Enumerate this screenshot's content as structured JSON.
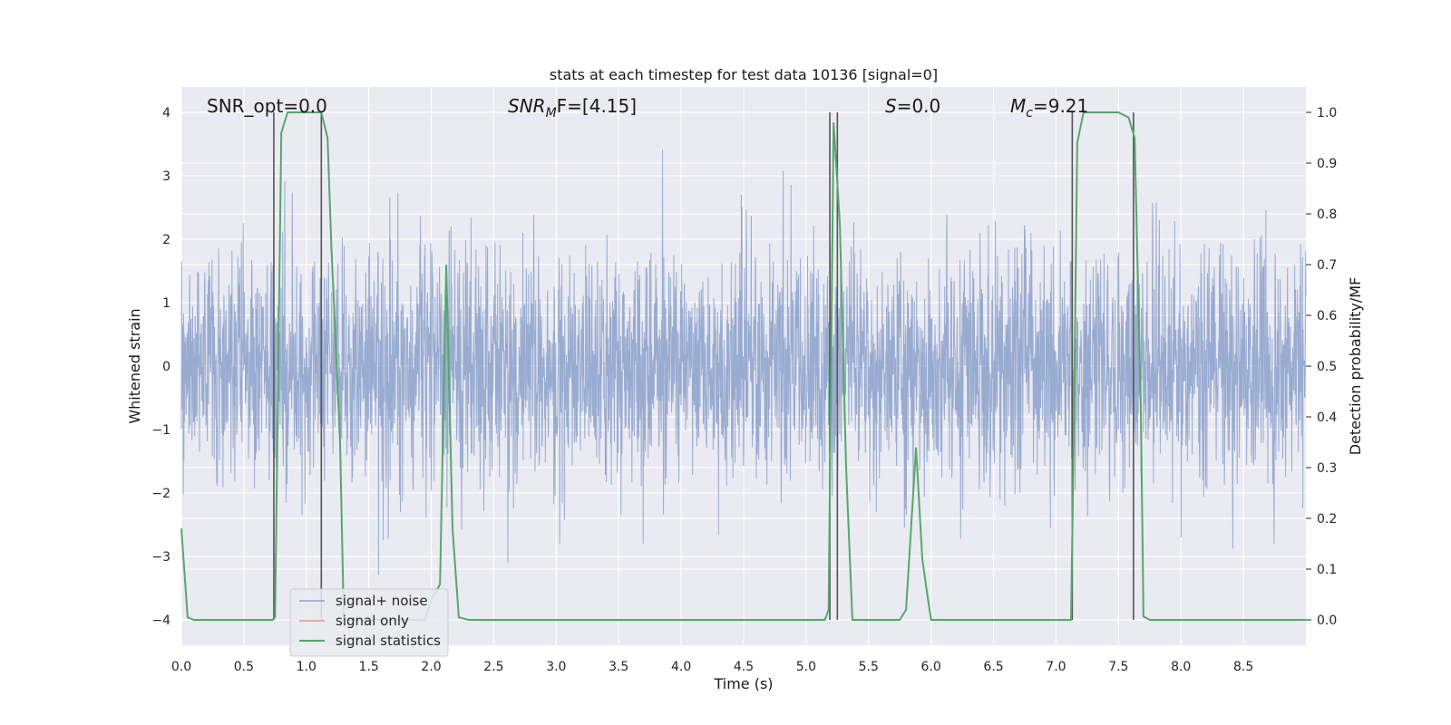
{
  "chart_data": {
    "type": "line",
    "title": "stats at each timestep for test data 10136 [signal=0]",
    "xlabel": "Time (s)",
    "ylabel": "Whitened strain",
    "y2label": "Detection probability/MF",
    "xlim": [
      0,
      9.0
    ],
    "ylim": [
      -4.4,
      4.4
    ],
    "y2lim": [
      -0.05,
      1.05
    ],
    "xticks": [
      "0.0",
      "0.5",
      "1.0",
      "1.5",
      "2.0",
      "2.5",
      "3.0",
      "3.5",
      "4.0",
      "4.5",
      "5.0",
      "5.5",
      "6.0",
      "6.5",
      "7.0",
      "7.5",
      "8.0",
      "8.5"
    ],
    "yticks": [
      "4",
      "3",
      "2",
      "1",
      "0",
      "−1",
      "−2",
      "−3",
      "−4"
    ],
    "y2ticks": [
      "1.0",
      "0.9",
      "0.8",
      "0.7",
      "0.6",
      "0.5",
      "0.4",
      "0.3",
      "0.2",
      "0.1",
      "0.0"
    ],
    "grid": true,
    "legend_position": "lower-left",
    "annotations": {
      "snr_opt": "SNR_opt=0.0",
      "snr_mf_label": "SNR",
      "snr_mf_sub": "M",
      "snr_mf_rest": "F=[4.15]",
      "s_label": "S",
      "s_rest": "=0.0",
      "mc_label": "M",
      "mc_sub": "c",
      "mc_rest": "=9.21"
    },
    "series": [
      {
        "name": "signal+ noise",
        "color": "#8fa4cc",
        "description": "whitened strain, noise only, amplitude mostly within ±2, spikes up to ±4",
        "envelope_std": 0.9
      },
      {
        "name": "signal only",
        "color": "#e8987a",
        "values": []
      },
      {
        "name": "signal statistics",
        "color": "#55a868",
        "axis": "right",
        "x": [
          0.0,
          0.05,
          0.1,
          0.73,
          0.75,
          0.8,
          0.85,
          1.0,
          1.12,
          1.17,
          1.2,
          1.27,
          1.3,
          1.95,
          2.0,
          2.07,
          2.12,
          2.17,
          2.22,
          2.3,
          5.15,
          5.18,
          5.22,
          5.27,
          5.32,
          5.37,
          5.75,
          5.8,
          5.88,
          5.93,
          5.97,
          6.0,
          7.12,
          7.14,
          7.17,
          7.22,
          7.25,
          7.5,
          7.58,
          7.63,
          7.68,
          7.7,
          7.75,
          9.0
        ],
        "values": [
          0.18,
          0.005,
          0.0,
          0.0,
          0.005,
          0.96,
          1.0,
          1.0,
          1.0,
          0.95,
          0.74,
          0.35,
          0.0,
          0.0,
          0.04,
          0.07,
          0.7,
          0.18,
          0.005,
          0.0,
          0.0,
          0.02,
          0.98,
          0.78,
          0.3,
          0.0,
          0.0,
          0.02,
          0.34,
          0.12,
          0.05,
          0.0,
          0.0,
          0.32,
          0.94,
          1.0,
          1.0,
          1.0,
          0.99,
          0.95,
          0.4,
          0.007,
          0.0,
          0.0
        ]
      }
    ],
    "vlines": [
      0.74,
      1.12,
      5.19,
      5.25,
      7.13,
      7.62
    ]
  }
}
